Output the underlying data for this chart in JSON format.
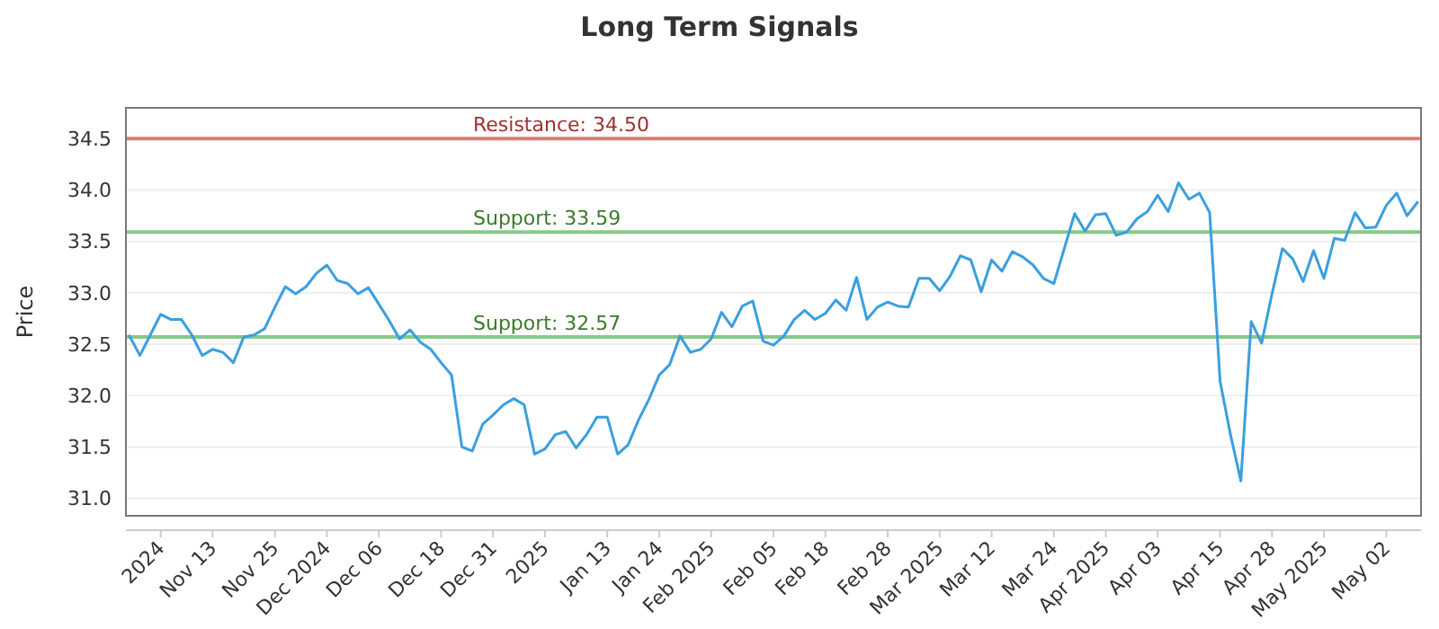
{
  "chart_data": {
    "type": "line",
    "title": "Long Term Signals",
    "ylabel": "Price",
    "categories": [
      null,
      null,
      null,
      "2024",
      null,
      null,
      null,
      null,
      "Nov 13",
      null,
      null,
      null,
      null,
      null,
      "Nov 25",
      null,
      null,
      null,
      null,
      "Dec 2024",
      null,
      null,
      null,
      null,
      "Dec 06",
      null,
      null,
      null,
      null,
      null,
      "Dec 18",
      null,
      null,
      null,
      null,
      "Dec 31",
      null,
      null,
      null,
      null,
      "2025",
      null,
      null,
      null,
      null,
      null,
      "Jan 13",
      null,
      null,
      null,
      null,
      "Jan 24",
      null,
      null,
      null,
      null,
      "Feb 2025",
      null,
      null,
      null,
      null,
      null,
      "Feb 05",
      null,
      null,
      null,
      null,
      "Feb 18",
      null,
      null,
      null,
      null,
      null,
      "Feb 28",
      null,
      null,
      null,
      null,
      "Mar 2025",
      null,
      null,
      null,
      null,
      "Mar 12",
      null,
      null,
      null,
      null,
      null,
      "Mar 24",
      null,
      null,
      null,
      null,
      "Apr 2025",
      null,
      null,
      null,
      null,
      "Apr 03",
      null,
      null,
      null,
      null,
      null,
      "Apr 15",
      null,
      null,
      null,
      null,
      "Apr 28",
      null,
      null,
      null,
      null,
      "May 2025",
      null,
      null,
      null,
      null,
      null,
      "May 02",
      null,
      null,
      null
    ],
    "series": [
      {
        "color": "#3a9fe0",
        "values": [
          32.58,
          32.39,
          32.59,
          32.79,
          32.74,
          32.74,
          32.59,
          32.39,
          32.45,
          32.42,
          32.32,
          32.57,
          32.59,
          32.65,
          32.86,
          33.06,
          32.99,
          33.06,
          33.19,
          33.27,
          33.12,
          33.09,
          32.99,
          33.05,
          32.89,
          32.73,
          32.55,
          32.64,
          32.52,
          32.45,
          32.32,
          32.2,
          31.5,
          31.46,
          31.72,
          31.81,
          31.91,
          31.97,
          31.91,
          31.43,
          31.48,
          31.62,
          31.65,
          31.49,
          31.62,
          31.79,
          31.79,
          31.43,
          31.52,
          31.76,
          31.96,
          32.2,
          32.3,
          32.58,
          32.42,
          32.45,
          32.55,
          32.81,
          32.67,
          32.87,
          32.92,
          32.53,
          32.49,
          32.58,
          32.74,
          32.83,
          32.74,
          32.8,
          32.93,
          32.83,
          33.15,
          32.74,
          32.86,
          32.91,
          32.87,
          32.86,
          33.14,
          33.14,
          33.02,
          33.16,
          33.36,
          33.32,
          33.01,
          33.32,
          33.21,
          33.4,
          33.35,
          33.27,
          33.14,
          33.09,
          33.43,
          33.77,
          33.6,
          33.76,
          33.77,
          33.56,
          33.59,
          33.72,
          33.79,
          33.95,
          33.79,
          34.07,
          33.91,
          33.97,
          33.78,
          32.14,
          31.62,
          31.17,
          32.72,
          32.51,
          32.99,
          33.43,
          33.33,
          33.11,
          33.41,
          33.14,
          33.53,
          33.51,
          33.78,
          33.63,
          33.64,
          33.85,
          33.97,
          33.75,
          33.88
        ]
      }
    ],
    "ylim": [
      30.83,
      34.8
    ],
    "yticks": [
      {
        "value": 31,
        "label": "31.0"
      },
      {
        "value": 31.5,
        "label": "31.5"
      },
      {
        "value": 32,
        "label": "32.0"
      },
      {
        "value": 32.5,
        "label": "32.5"
      },
      {
        "value": 33,
        "label": "33.0"
      },
      {
        "value": 33.5,
        "label": "33.5"
      },
      {
        "value": 34,
        "label": "34.0"
      },
      {
        "value": 34.5,
        "label": "34.5"
      }
    ],
    "grid": "y",
    "marker": "none",
    "line_style": "solid",
    "ref_lines": [
      {
        "axis": "y",
        "value": 34.5,
        "label": "Resistance: 34.50",
        "color": "#d9534f"
      },
      {
        "axis": "y",
        "value": 33.59,
        "label": "Support: 33.59",
        "color": "#5cb85c"
      },
      {
        "axis": "y",
        "value": 32.57,
        "label": "Support: 32.57",
        "color": "#5cb85c"
      }
    ]
  }
}
